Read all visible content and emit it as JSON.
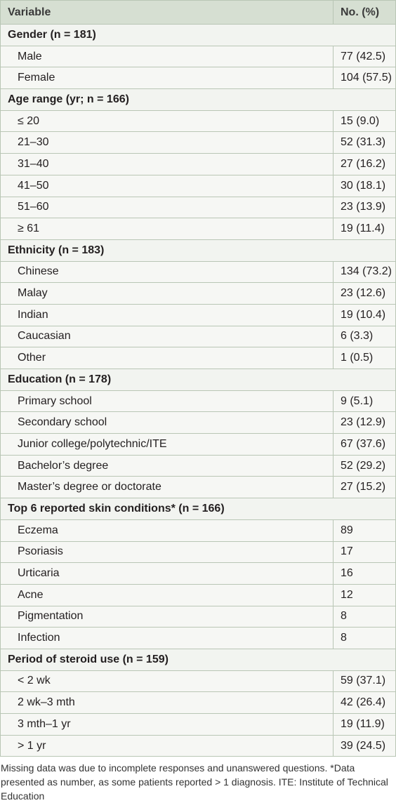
{
  "table": {
    "header": [
      "Variable",
      "No. (%)"
    ],
    "sections": [
      {
        "title": "Gender (n = 181)",
        "rows": [
          [
            "Male",
            "77 (42.5)"
          ],
          [
            "Female",
            "104 (57.5)"
          ]
        ]
      },
      {
        "title": "Age range (yr; n = 166)",
        "rows": [
          [
            "≤ 20",
            "15 (9.0)"
          ],
          [
            "21–30",
            "52 (31.3)"
          ],
          [
            "31–40",
            "27 (16.2)"
          ],
          [
            "41–50",
            "30 (18.1)"
          ],
          [
            "51–60",
            "23 (13.9)"
          ],
          [
            "≥ 61",
            "19 (11.4)"
          ]
        ]
      },
      {
        "title": "Ethnicity (n = 183)",
        "rows": [
          [
            "Chinese",
            "134 (73.2)"
          ],
          [
            "Malay",
            "23 (12.6)"
          ],
          [
            "Indian",
            "19 (10.4)"
          ],
          [
            "Caucasian",
            "6 (3.3)"
          ],
          [
            "Other",
            "1 (0.5)"
          ]
        ]
      },
      {
        "title": "Education (n = 178)",
        "rows": [
          [
            "Primary school",
            "9 (5.1)"
          ],
          [
            "Secondary school",
            "23 (12.9)"
          ],
          [
            "Junior college/polytechnic/ITE",
            "67 (37.6)"
          ],
          [
            "Bachelor’s degree",
            "52 (29.2)"
          ],
          [
            "Master’s degree or doctorate",
            "27 (15.2)"
          ]
        ]
      },
      {
        "title": "Top 6 reported skin conditions* (n = 166)",
        "rows": [
          [
            "Eczema",
            "89"
          ],
          [
            "Psoriasis",
            "17"
          ],
          [
            "Urticaria",
            "16"
          ],
          [
            "Acne",
            "12"
          ],
          [
            "Pigmentation",
            "8"
          ],
          [
            "Infection",
            "8"
          ]
        ]
      },
      {
        "title": "Period of steroid use (n = 159)",
        "rows": [
          [
            "< 2 wk",
            "59 (37.1)"
          ],
          [
            "2 wk–3 mth",
            "42 (26.4)"
          ],
          [
            "3 mth–1 yr",
            "19 (11.9)"
          ],
          [
            "> 1 yr",
            "39 (24.5)"
          ]
        ]
      }
    ],
    "footnote": "Missing data was due to incomplete responses and unanswered questions. *Data presented as number, as some patients reported > 1 diagnosis. ITE: Institute of Technical Education"
  }
}
